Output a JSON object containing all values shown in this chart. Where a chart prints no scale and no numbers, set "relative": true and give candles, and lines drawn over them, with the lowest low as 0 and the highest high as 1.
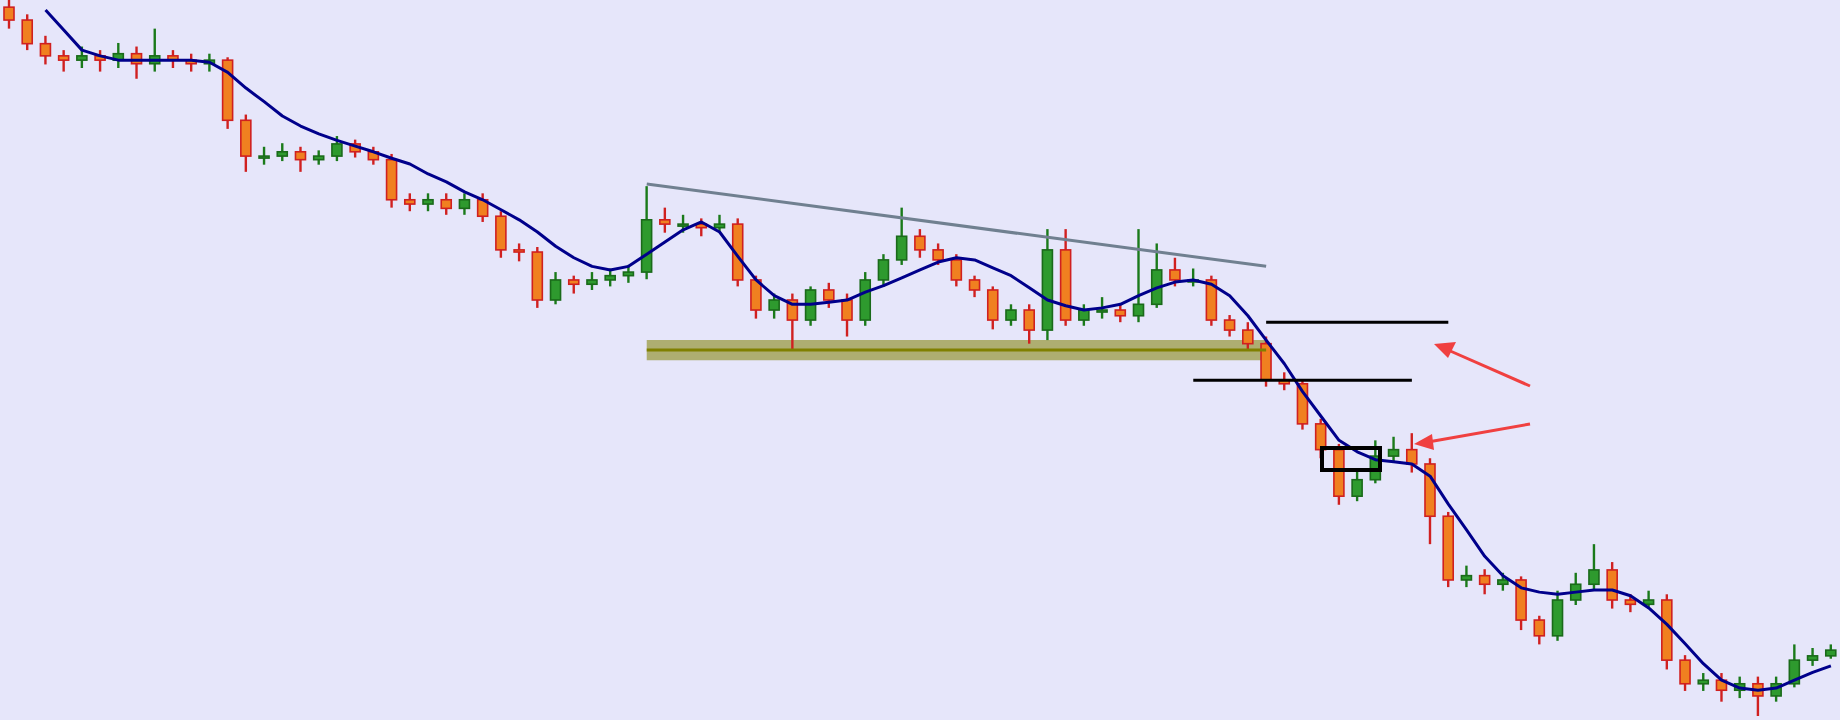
{
  "chart_data": {
    "type": "candlestick",
    "relative": true,
    "tick_labels": false,
    "grid": false,
    "categories": [
      null,
      null,
      null,
      null,
      null,
      null,
      null,
      null,
      null,
      null,
      null,
      null,
      null,
      null,
      null,
      null,
      null,
      null,
      null,
      null,
      null,
      null,
      null,
      null,
      null,
      null,
      null,
      null,
      null,
      null,
      null,
      null,
      null,
      null,
      null,
      null,
      null,
      null,
      null,
      null,
      null,
      null,
      null,
      null,
      null,
      null,
      null,
      null,
      null,
      null,
      null,
      null,
      null,
      null,
      null,
      null,
      null,
      null,
      null,
      null,
      null,
      null,
      null,
      null,
      null,
      null,
      null,
      null,
      null,
      null,
      null,
      null,
      null,
      null,
      null,
      null,
      null,
      null,
      null,
      null,
      null,
      null,
      null,
      null,
      null,
      null,
      null,
      null,
      null,
      null,
      null,
      null,
      null,
      null,
      null,
      null,
      null,
      null,
      null,
      null,
      null
    ],
    "ohlc": [
      [
        0.99,
        1,
        0.96,
        0.972
      ],
      [
        0.972,
        0.98,
        0.93,
        0.939
      ],
      [
        0.939,
        0.95,
        0.91,
        0.922
      ],
      [
        0.922,
        0.93,
        0.9,
        0.916
      ],
      [
        0.916,
        0.935,
        0.905,
        0.922
      ],
      [
        0.922,
        0.93,
        0.9,
        0.916
      ],
      [
        0.916,
        0.94,
        0.905,
        0.925
      ],
      [
        0.925,
        0.935,
        0.89,
        0.911
      ],
      [
        0.911,
        0.96,
        0.9,
        0.922
      ],
      [
        0.922,
        0.93,
        0.905,
        0.916
      ],
      [
        0.916,
        0.925,
        0.9,
        0.911
      ],
      [
        0.911,
        0.925,
        0.9,
        0.916
      ],
      [
        0.916,
        0.92,
        0.82,
        0.832
      ],
      [
        0.832,
        0.84,
        0.76,
        0.782
      ],
      [
        0.782,
        0.795,
        0.77,
        0.782
      ],
      [
        0.782,
        0.8,
        0.775,
        0.788
      ],
      [
        0.788,
        0.795,
        0.76,
        0.777
      ],
      [
        0.777,
        0.79,
        0.77,
        0.782
      ],
      [
        0.782,
        0.81,
        0.775,
        0.799
      ],
      [
        0.799,
        0.805,
        0.78,
        0.788
      ],
      [
        0.788,
        0.795,
        0.77,
        0.777
      ],
      [
        0.777,
        0.785,
        0.71,
        0.721
      ],
      [
        0.721,
        0.73,
        0.705,
        0.715
      ],
      [
        0.715,
        0.73,
        0.705,
        0.721
      ],
      [
        0.721,
        0.73,
        0.7,
        0.709
      ],
      [
        0.709,
        0.73,
        0.7,
        0.721
      ],
      [
        0.721,
        0.73,
        0.69,
        0.698
      ],
      [
        0.698,
        0.705,
        0.64,
        0.651
      ],
      [
        0.651,
        0.66,
        0.635,
        0.648
      ],
      [
        0.648,
        0.655,
        0.57,
        0.581
      ],
      [
        0.581,
        0.62,
        0.575,
        0.609
      ],
      [
        0.609,
        0.615,
        0.59,
        0.603
      ],
      [
        0.603,
        0.62,
        0.595,
        0.609
      ],
      [
        0.609,
        0.625,
        0.6,
        0.615
      ],
      [
        0.615,
        0.63,
        0.605,
        0.62
      ],
      [
        0.62,
        0.74,
        0.61,
        0.693
      ],
      [
        0.693,
        0.71,
        0.675,
        0.687
      ],
      [
        0.687,
        0.7,
        0.675,
        0.687
      ],
      [
        0.687,
        0.695,
        0.67,
        0.682
      ],
      [
        0.682,
        0.7,
        0.675,
        0.687
      ],
      [
        0.687,
        0.695,
        0.6,
        0.609
      ],
      [
        0.609,
        0.615,
        0.555,
        0.567
      ],
      [
        0.567,
        0.59,
        0.555,
        0.581
      ],
      [
        0.581,
        0.59,
        0.51,
        0.553
      ],
      [
        0.553,
        0.6,
        0.545,
        0.595
      ],
      [
        0.595,
        0.605,
        0.57,
        0.581
      ],
      [
        0.581,
        0.59,
        0.53,
        0.553
      ],
      [
        0.553,
        0.62,
        0.545,
        0.609
      ],
      [
        0.609,
        0.645,
        0.6,
        0.637
      ],
      [
        0.637,
        0.71,
        0.63,
        0.67
      ],
      [
        0.67,
        0.68,
        0.64,
        0.651
      ],
      [
        0.651,
        0.66,
        0.63,
        0.637
      ],
      [
        0.637,
        0.645,
        0.6,
        0.609
      ],
      [
        0.609,
        0.615,
        0.585,
        0.595
      ],
      [
        0.595,
        0.6,
        0.54,
        0.553
      ],
      [
        0.553,
        0.575,
        0.545,
        0.567
      ],
      [
        0.567,
        0.575,
        0.52,
        0.539
      ],
      [
        0.539,
        0.68,
        0.525,
        0.651
      ],
      [
        0.651,
        0.68,
        0.545,
        0.553
      ],
      [
        0.553,
        0.575,
        0.545,
        0.567
      ],
      [
        0.567,
        0.585,
        0.555,
        0.567
      ],
      [
        0.567,
        0.575,
        0.55,
        0.559
      ],
      [
        0.559,
        0.68,
        0.55,
        0.575
      ],
      [
        0.575,
        0.66,
        0.57,
        0.623
      ],
      [
        0.623,
        0.64,
        0.6,
        0.609
      ],
      [
        0.609,
        0.625,
        0.6,
        0.609
      ],
      [
        0.609,
        0.615,
        0.545,
        0.553
      ],
      [
        0.553,
        0.56,
        0.53,
        0.539
      ],
      [
        0.539,
        0.55,
        0.51,
        0.52
      ],
      [
        0.52,
        0.53,
        0.46,
        0.469
      ],
      [
        0.469,
        0.48,
        0.455,
        0.464
      ],
      [
        0.464,
        0.47,
        0.4,
        0.408
      ],
      [
        0.408,
        0.415,
        0.36,
        0.372
      ],
      [
        0.372,
        0.38,
        0.295,
        0.307
      ],
      [
        0.307,
        0.345,
        0.3,
        0.33
      ],
      [
        0.33,
        0.385,
        0.325,
        0.363
      ],
      [
        0.363,
        0.39,
        0.355,
        0.372
      ],
      [
        0.372,
        0.395,
        0.34,
        0.352
      ],
      [
        0.352,
        0.36,
        0.24,
        0.279
      ],
      [
        0.279,
        0.285,
        0.18,
        0.19
      ],
      [
        0.19,
        0.21,
        0.18,
        0.196
      ],
      [
        0.196,
        0.205,
        0.17,
        0.184
      ],
      [
        0.184,
        0.2,
        0.175,
        0.19
      ],
      [
        0.19,
        0.195,
        0.12,
        0.134
      ],
      [
        0.134,
        0.14,
        0.1,
        0.112
      ],
      [
        0.112,
        0.175,
        0.105,
        0.162
      ],
      [
        0.162,
        0.2,
        0.155,
        0.184
      ],
      [
        0.184,
        0.24,
        0.175,
        0.204
      ],
      [
        0.204,
        0.215,
        0.15,
        0.162
      ],
      [
        0.162,
        0.17,
        0.145,
        0.156
      ],
      [
        0.156,
        0.175,
        0.15,
        0.162
      ],
      [
        0.162,
        0.17,
        0.065,
        0.078
      ],
      [
        0.078,
        0.085,
        0.035,
        0.045
      ],
      [
        0.045,
        0.06,
        0.035,
        0.05
      ],
      [
        0.05,
        0.06,
        0.02,
        0.036
      ],
      [
        0.036,
        0.055,
        0.025,
        0.045
      ],
      [
        0.045,
        0.055,
        0,
        0.028
      ],
      [
        0.028,
        0.055,
        0.02,
        0.045
      ],
      [
        0.045,
        0.1,
        0.04,
        0.078
      ],
      [
        0.078,
        0.095,
        0.07,
        0.084
      ],
      [
        0.084,
        0.1,
        0.08,
        0.092
      ]
    ],
    "series": [
      {
        "type": "line",
        "color": "#808000",
        "values": [
          null,
          null,
          null,
          null,
          null,
          null,
          null,
          null,
          null,
          null,
          null,
          null,
          null,
          null,
          null,
          null,
          null,
          null,
          null,
          null,
          null,
          null,
          null,
          null,
          null,
          null,
          null,
          null,
          null,
          null,
          null,
          null,
          null,
          null,
          null,
          0.511,
          null,
          null,
          null,
          null,
          null,
          null,
          null,
          null,
          null,
          null,
          null,
          null,
          null,
          null,
          null,
          null,
          null,
          null,
          null,
          null,
          null,
          null,
          null,
          null,
          null,
          null,
          null,
          null,
          null,
          null,
          null,
          null,
          null,
          0.511,
          null,
          null,
          null,
          null,
          null,
          null,
          null,
          null,
          null,
          null,
          null,
          null,
          null,
          null,
          null,
          null,
          null,
          null,
          null,
          null,
          null,
          null,
          null,
          null,
          null,
          null,
          null,
          null,
          null,
          null,
          null
        ],
        "lower": [
          null,
          null,
          null,
          null,
          null,
          null,
          null,
          null,
          null,
          null,
          null,
          null,
          null,
          null,
          null,
          null,
          null,
          null,
          null,
          null,
          null,
          null,
          null,
          null,
          null,
          null,
          null,
          null,
          null,
          null,
          null,
          null,
          null,
          null,
          null,
          0.497,
          null,
          null,
          null,
          null,
          null,
          null,
          null,
          null,
          null,
          null,
          null,
          null,
          null,
          null,
          null,
          null,
          null,
          null,
          null,
          null,
          null,
          null,
          null,
          null,
          null,
          null,
          null,
          null,
          null,
          null,
          null,
          null,
          null,
          0.497,
          null,
          null,
          null,
          null,
          null,
          null,
          null,
          null,
          null,
          null,
          null,
          null,
          null,
          null,
          null,
          null,
          null,
          null,
          null,
          null,
          null,
          null,
          null,
          null,
          null,
          null,
          null,
          null,
          null,
          null,
          null
        ],
        "upper": [
          null,
          null,
          null,
          null,
          null,
          null,
          null,
          null,
          null,
          null,
          null,
          null,
          null,
          null,
          null,
          null,
          null,
          null,
          null,
          null,
          null,
          null,
          null,
          null,
          null,
          null,
          null,
          null,
          null,
          null,
          null,
          null,
          null,
          null,
          null,
          0.525,
          null,
          null,
          null,
          null,
          null,
          null,
          null,
          null,
          null,
          null,
          null,
          null,
          null,
          null,
          null,
          null,
          null,
          null,
          null,
          null,
          null,
          null,
          null,
          null,
          null,
          null,
          null,
          null,
          null,
          null,
          null,
          null,
          null,
          0.525,
          null,
          null,
          null,
          null,
          null,
          null,
          null,
          null,
          null,
          null,
          null,
          null,
          null,
          null,
          null,
          null,
          null,
          null,
          null,
          null,
          null,
          null,
          null,
          null,
          null,
          null,
          null,
          null,
          null,
          null,
          null
        ]
      },
      {
        "type": "line",
        "color": "#00008b",
        "values": [
          null,
          null,
          0.986,
          0.958,
          0.93,
          0.922,
          0.916,
          0.916,
          0.916,
          0.916,
          0.916,
          0.913,
          0.899,
          0.877,
          0.858,
          0.838,
          0.824,
          0.813,
          0.804,
          0.796,
          0.788,
          0.779,
          0.771,
          0.757,
          0.746,
          0.732,
          0.721,
          0.707,
          0.693,
          0.676,
          0.656,
          0.64,
          0.628,
          0.623,
          0.628,
          0.645,
          0.662,
          0.679,
          0.69,
          0.676,
          0.642,
          0.609,
          0.587,
          0.575,
          0.575,
          0.578,
          0.581,
          0.592,
          0.601,
          0.612,
          0.623,
          0.634,
          0.64,
          0.637,
          0.626,
          0.615,
          0.598,
          0.581,
          0.573,
          0.567,
          0.57,
          0.575,
          0.587,
          0.598,
          0.606,
          0.609,
          0.603,
          0.587,
          0.559,
          0.525,
          0.492,
          0.453,
          0.419,
          0.385,
          0.369,
          0.358,
          0.355,
          0.352,
          0.335,
          0.296,
          0.26,
          0.223,
          0.196,
          0.179,
          0.173,
          0.17,
          0.173,
          0.176,
          0.176,
          0.168,
          0.151,
          0.128,
          0.101,
          0.073,
          0.05,
          0.039,
          0.036,
          0.039,
          0.05,
          0.061,
          0.07
        ]
      },
      {
        "type": "line",
        "color": "#708090",
        "values": [
          null,
          null,
          null,
          null,
          null,
          null,
          null,
          null,
          null,
          null,
          null,
          null,
          null,
          null,
          null,
          null,
          null,
          null,
          null,
          null,
          null,
          null,
          null,
          null,
          null,
          null,
          null,
          null,
          null,
          null,
          null,
          null,
          null,
          null,
          null,
          0.743,
          null,
          null,
          null,
          null,
          null,
          null,
          null,
          null,
          null,
          null,
          null,
          null,
          null,
          null,
          null,
          null,
          null,
          null,
          null,
          null,
          null,
          null,
          null,
          null,
          null,
          null,
          null,
          null,
          null,
          null,
          null,
          null,
          null,
          0.628,
          null,
          null,
          null,
          null,
          null,
          null,
          null,
          null,
          null,
          null,
          null,
          null,
          null,
          null,
          null,
          null,
          null,
          null,
          null,
          null,
          null,
          null,
          null,
          null,
          null,
          null,
          null,
          null,
          null,
          null,
          null
        ]
      },
      {
        "type": "line",
        "color": "#000000",
        "values": [
          null,
          null,
          null,
          null,
          null,
          null,
          null,
          null,
          null,
          null,
          null,
          null,
          null,
          null,
          null,
          null,
          null,
          null,
          null,
          null,
          null,
          null,
          null,
          null,
          null,
          null,
          null,
          null,
          null,
          null,
          null,
          null,
          null,
          null,
          null,
          null,
          null,
          null,
          null,
          null,
          null,
          null,
          null,
          null,
          null,
          null,
          null,
          null,
          null,
          null,
          null,
          null,
          null,
          null,
          null,
          null,
          null,
          null,
          null,
          null,
          null,
          null,
          null,
          null,
          null,
          null,
          null,
          null,
          null,
          0.55,
          null,
          null,
          null,
          null,
          null,
          null,
          null,
          null,
          null,
          0.55,
          null,
          null,
          null,
          null,
          null,
          null,
          null,
          null,
          null,
          null,
          null,
          null,
          null,
          null,
          null,
          null,
          null,
          null,
          null,
          null,
          null
        ]
      },
      {
        "type": "line",
        "color": "#000000",
        "values": [
          null,
          null,
          null,
          null,
          null,
          null,
          null,
          null,
          null,
          null,
          null,
          null,
          null,
          null,
          null,
          null,
          null,
          null,
          null,
          null,
          null,
          null,
          null,
          null,
          null,
          null,
          null,
          null,
          null,
          null,
          null,
          null,
          null,
          null,
          null,
          null,
          null,
          null,
          null,
          null,
          null,
          null,
          null,
          null,
          null,
          null,
          null,
          null,
          null,
          null,
          null,
          null,
          null,
          null,
          null,
          null,
          null,
          null,
          null,
          null,
          null,
          null,
          null,
          null,
          null,
          0.469,
          null,
          null,
          null,
          null,
          null,
          null,
          null,
          null,
          null,
          null,
          null,
          0.469,
          null,
          null,
          null,
          null,
          null,
          null,
          null,
          null,
          null,
          null,
          null,
          null,
          null,
          null,
          null,
          null,
          null,
          null,
          null,
          null,
          null,
          null,
          null
        ]
      }
    ]
  }
}
